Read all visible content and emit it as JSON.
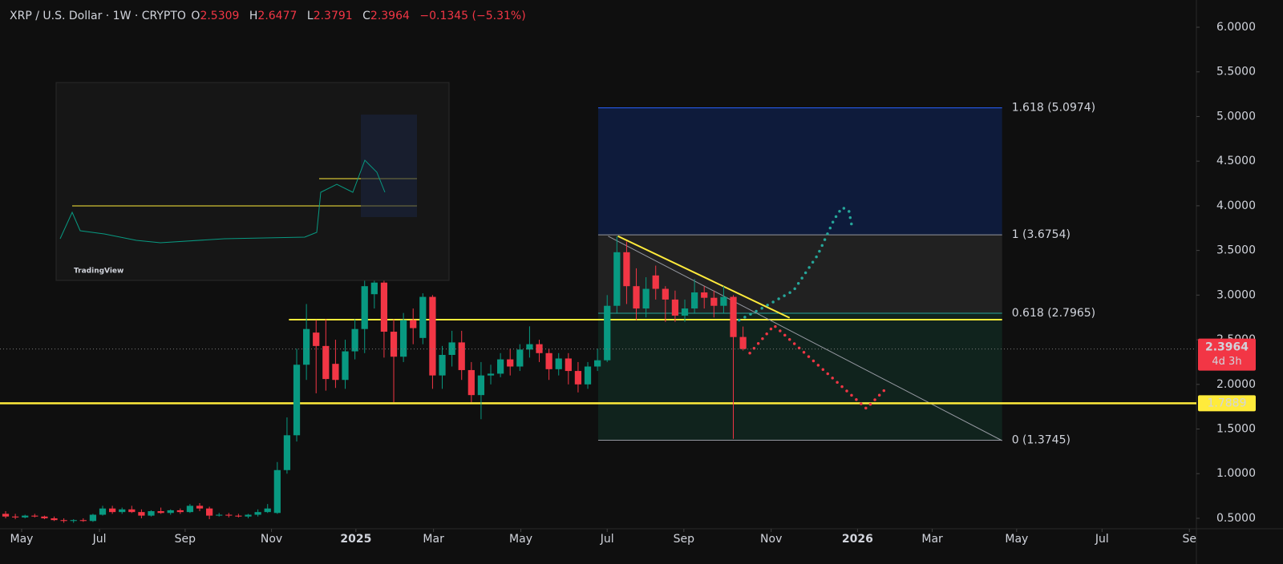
{
  "chart_data": {
    "type": "candlestick",
    "header": {
      "symbol": "XRP / U.S. Dollar · 1W · CRYPTO",
      "letters": [
        "O",
        "H",
        "L",
        "C"
      ],
      "change": "−0.1345 (−5.31%)"
    },
    "countdown": "4d 3h",
    "brand": "TradingView",
    "categories": [
      null,
      null,
      null,
      null,
      null,
      null,
      null,
      null,
      null,
      null,
      null,
      null,
      null,
      null,
      null,
      null,
      null,
      null,
      null,
      null,
      null,
      null,
      null,
      null,
      null,
      null,
      null,
      null,
      null,
      null,
      null,
      null,
      null,
      null,
      null,
      null,
      null,
      null,
      null,
      null,
      null,
      null,
      null,
      null,
      null,
      null,
      null,
      null,
      null,
      null,
      null,
      null,
      null,
      null,
      null,
      null,
      null,
      null,
      null,
      null,
      null,
      null,
      null,
      null,
      null,
      null,
      null,
      null,
      null,
      null,
      null,
      null,
      null,
      null,
      null,
      null,
      null
    ],
    "series": [
      {
        "up_color": "#089981",
        "down_color": "#f23645",
        "open": [
          0.55,
          0.52,
          0.51,
          0.53,
          0.52,
          0.5,
          0.48,
          0.47,
          0.48,
          0.47,
          0.54,
          0.61,
          0.57,
          0.6,
          0.57,
          0.53,
          0.58,
          0.56,
          0.59,
          0.57,
          0.64,
          0.61,
          0.53,
          0.54,
          0.53,
          0.52,
          0.54,
          0.57,
          0.56,
          1.04,
          1.43,
          2.22,
          2.58,
          2.43,
          2.23,
          2.05,
          2.37,
          2.62,
          3.01,
          3.14,
          2.59,
          2.31,
          2.72,
          2.52,
          2.98,
          2.1,
          2.33,
          2.47,
          2.16,
          1.88,
          2.1,
          2.12,
          2.28,
          2.2,
          2.39,
          2.45,
          2.35,
          2.17,
          2.29,
          2.15,
          2.0,
          2.2,
          2.27,
          2.88,
          3.48,
          3.1,
          2.85,
          3.22,
          3.07,
          2.95,
          2.77,
          2.85,
          3.03,
          2.97,
          2.88,
          2.98,
          2.5309
        ],
        "high": [
          0.58,
          0.55,
          0.54,
          0.55,
          0.53,
          0.52,
          0.5,
          0.49,
          0.5,
          0.55,
          0.64,
          0.64,
          0.62,
          0.64,
          0.6,
          0.59,
          0.62,
          0.6,
          0.61,
          0.66,
          0.67,
          0.63,
          0.56,
          0.56,
          0.55,
          0.55,
          0.6,
          0.66,
          1.13,
          1.63,
          2.4,
          2.9,
          2.72,
          2.73,
          2.5,
          2.5,
          2.73,
          3.4,
          3.4,
          3.28,
          2.73,
          2.8,
          2.85,
          3.02,
          3.0,
          2.43,
          2.6,
          2.6,
          2.25,
          2.25,
          2.22,
          2.35,
          2.4,
          2.45,
          2.65,
          2.5,
          2.4,
          2.35,
          2.35,
          2.25,
          2.25,
          2.4,
          3.0,
          3.66,
          3.6,
          3.3,
          3.2,
          3.33,
          3.1,
          3.05,
          2.95,
          3.18,
          3.1,
          3.05,
          3.1,
          3.0,
          2.6477
        ],
        "low": [
          0.5,
          0.49,
          0.5,
          0.51,
          0.49,
          0.47,
          0.45,
          0.45,
          0.46,
          0.46,
          0.53,
          0.55,
          0.55,
          0.56,
          0.5,
          0.52,
          0.55,
          0.54,
          0.55,
          0.56,
          0.58,
          0.49,
          0.52,
          0.51,
          0.51,
          0.5,
          0.52,
          0.56,
          0.55,
          1.0,
          1.36,
          2.05,
          1.9,
          1.93,
          1.96,
          1.95,
          2.28,
          2.35,
          2.85,
          2.3,
          1.8,
          2.25,
          2.45,
          2.45,
          1.95,
          1.95,
          2.2,
          2.05,
          1.8,
          1.61,
          2.0,
          2.08,
          2.1,
          2.15,
          2.3,
          2.25,
          2.05,
          2.1,
          2.0,
          1.91,
          1.95,
          2.15,
          2.25,
          2.8,
          2.9,
          2.72,
          2.75,
          2.95,
          2.7,
          2.7,
          2.7,
          2.8,
          2.85,
          2.75,
          2.8,
          1.39,
          2.3791
        ],
        "close": [
          0.52,
          0.51,
          0.53,
          0.52,
          0.5,
          0.48,
          0.47,
          0.48,
          0.47,
          0.54,
          0.61,
          0.57,
          0.6,
          0.57,
          0.53,
          0.58,
          0.56,
          0.59,
          0.57,
          0.64,
          0.61,
          0.53,
          0.54,
          0.53,
          0.52,
          0.54,
          0.57,
          0.61,
          1.04,
          1.43,
          2.22,
          2.62,
          2.43,
          2.06,
          2.05,
          2.37,
          2.62,
          3.1,
          3.14,
          2.59,
          2.31,
          2.72,
          2.63,
          2.98,
          2.1,
          2.33,
          2.47,
          2.16,
          1.88,
          2.1,
          2.12,
          2.28,
          2.2,
          2.39,
          2.45,
          2.35,
          2.17,
          2.29,
          2.15,
          2.0,
          2.2,
          2.27,
          2.88,
          3.48,
          3.1,
          2.85,
          3.07,
          3.07,
          2.95,
          2.77,
          2.85,
          3.03,
          2.97,
          2.88,
          2.98,
          2.53,
          2.3964
        ]
      }
    ],
    "xlim": [
      -0.58,
      122.56
    ],
    "xticks": [
      {
        "value": 1.65,
        "label": "May"
      },
      {
        "value": 9.67,
        "label": "Jul"
      },
      {
        "value": 18.5,
        "label": "Sep"
      },
      {
        "value": 27.4,
        "label": "Nov"
      },
      {
        "value": 36.1,
        "label": "2025"
      },
      {
        "value": 44.1,
        "label": "Mar"
      },
      {
        "value": 53.1,
        "label": "May"
      },
      {
        "value": 62,
        "label": "Jul"
      },
      {
        "value": 69.9,
        "label": "Sep"
      },
      {
        "value": 78.9,
        "label": "Nov"
      },
      {
        "value": 87.8,
        "label": "2026"
      },
      {
        "value": 95.5,
        "label": "Mar"
      },
      {
        "value": 104.2,
        "label": "May"
      },
      {
        "value": 113,
        "label": "Jul"
      },
      {
        "value": 122,
        "label": "Se"
      }
    ],
    "ylim": [
      0.383,
      6.305
    ],
    "yticks": [
      {
        "value": 0.5,
        "label": "0.5000"
      },
      {
        "value": 1,
        "label": "1.0000"
      },
      {
        "value": 1.5,
        "label": "1.5000"
      },
      {
        "value": 2,
        "label": "2.0000"
      },
      {
        "value": 2.5,
        "label": "2.5000"
      },
      {
        "value": 3,
        "label": "3.0000"
      },
      {
        "value": 3.5,
        "label": "3.5000"
      },
      {
        "value": 4,
        "label": "4.0000"
      },
      {
        "value": 4.5,
        "label": "4.5000"
      },
      {
        "value": 5,
        "label": "5.0000"
      },
      {
        "value": 5.5,
        "label": "5.5000"
      },
      {
        "value": 6,
        "label": "6.0000"
      }
    ],
    "fib": {
      "x": [
        61.07,
        102.7
      ],
      "levels": [
        {
          "value": 5.0974,
          "label": "1.618 (5.0974)",
          "color": "#2962ff",
          "fill": "#0e1d40"
        },
        {
          "value": 3.6754,
          "label": "1 (3.6754)",
          "color": "#9598a1",
          "fill": "#232323"
        },
        {
          "value": 2.7965,
          "label": "0.618 (2.7965)",
          "color": "#26a69a",
          "fill": "#11261f"
        },
        {
          "value": 1.3745,
          "label": "0 (1.3745)",
          "color": "#9598a1"
        }
      ]
    },
    "hlines": [
      {
        "value": 1.7889,
        "color": "#ffeb3b"
      }
    ],
    "segments": [
      {
        "x": [
          29.2,
          102.7
        ],
        "y": [
          2.725,
          2.725
        ],
        "color": "#ffeb3b"
      },
      {
        "x": [
          63.1,
          80.8
        ],
        "y": [
          3.66,
          2.745
        ],
        "color": "#ffeb3b"
      },
      {
        "x": [
          62.1,
          102.7
        ],
        "y": [
          3.66,
          1.37
        ],
        "color": "#9598a1"
      }
    ],
    "projections": [
      {
        "x": [
          75.6,
          77.9,
          81.2,
          83.7,
          85.4,
          86.2,
          86.9,
          87.2
        ],
        "y": [
          2.72,
          2.85,
          3.05,
          3.45,
          3.85,
          3.98,
          3.95,
          3.78
        ],
        "color": "#26a69a"
      },
      {
        "x": [
          76.7,
          79.2,
          88.7,
          90.7
        ],
        "y": [
          2.35,
          2.66,
          1.73,
          1.95
        ],
        "color": "#f23645"
      }
    ]
  }
}
